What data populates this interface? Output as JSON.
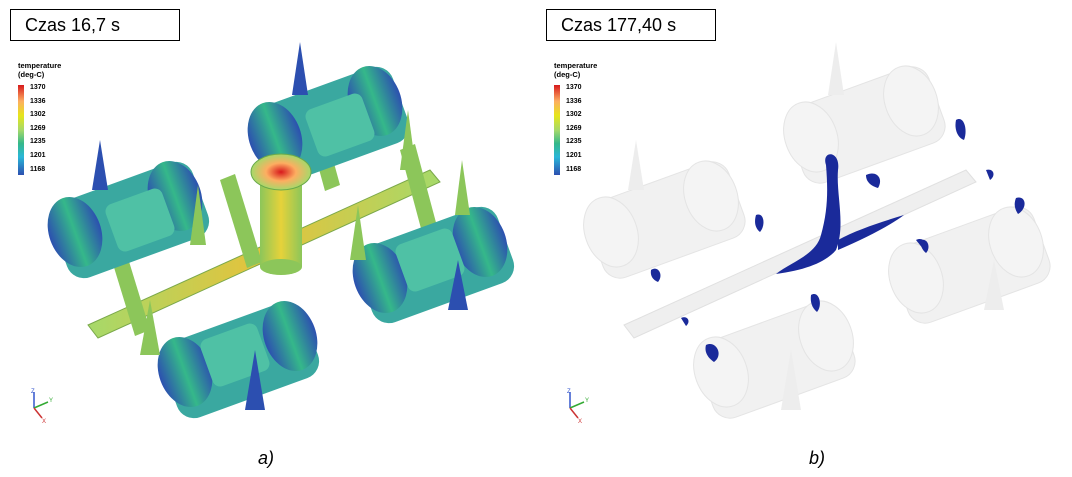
{
  "panels": [
    {
      "time_label": "Czas 16,7 s",
      "caption": "a)",
      "legend": {
        "title_line1": "temperature",
        "title_line2": "(deg-C)",
        "values": [
          "1370",
          "1336",
          "1302",
          "1269",
          "1235",
          "1201",
          "1168"
        ]
      }
    },
    {
      "time_label": "Czas 177,40 s",
      "caption": "b)",
      "legend": {
        "title_line1": "temperature",
        "title_line2": "(deg-C)",
        "values": [
          "1370",
          "1336",
          "1302",
          "1269",
          "1235",
          "1201",
          "1168"
        ]
      }
    }
  ],
  "axes": {
    "x": "X",
    "y": "Y",
    "z": "Z"
  },
  "colors": {
    "hot": "#d7191c",
    "mid": "#a6d96a",
    "cool": "#2c4fb0",
    "ghost": "#d9d9d9"
  }
}
